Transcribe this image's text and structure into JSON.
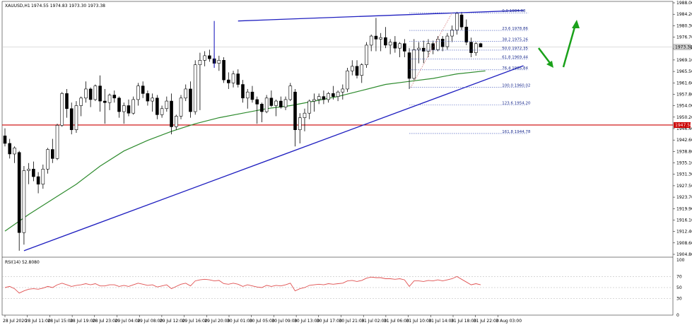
{
  "window": {
    "symbol_title": "XAUUSD,H1",
    "ohlc_text": "1974.55 1974.83 1973.30 1973.38"
  },
  "indicator": {
    "title": "RSI(14) 52.8080",
    "levels": [
      "100",
      "70",
      "50",
      "30",
      "0"
    ]
  },
  "price_tags": {
    "current": "1973.38",
    "horizontal_level": "1947.58"
  },
  "colors": {
    "bull": "#ffffff",
    "bear": "#000000",
    "candle_outline": "#000000",
    "moving_average": "#2e8b2e",
    "trend_line": "#2020c0",
    "horizontal_level": "#cc0000",
    "fib": "#3a4fb8",
    "arrows": "#1aa11a",
    "rsi": "#e05050",
    "current_price_tag": "#d0d0d0"
  },
  "chart_data": {
    "type": "candlestick",
    "title": "",
    "y_range": [
      1904.8,
      1988.0
    ],
    "y_ticks": [
      "1988.00",
      "1984.20",
      "1980.30",
      "1976.70",
      "1973.00",
      "1969.10",
      "1965.50",
      "1961.60",
      "1957.80",
      "1954.00",
      "1950.20",
      "1946.40",
      "1942.60",
      "1938.80",
      "1935.10",
      "1931.30",
      "1927.50",
      "1923.70",
      "1919.90",
      "1916.10",
      "1912.40",
      "1908.60",
      "1904.80"
    ],
    "x_ticks": [
      "28 Jul 2020",
      "28 Jul 11:00",
      "28 Jul 15:00",
      "28 Jul 19:00",
      "28 Jul 23:00",
      "29 Jul 04:00",
      "29 Jul 08:00",
      "29 Jul 12:00",
      "29 Jul 16:00",
      "29 Jul 20:00",
      "30 Jul 01:00",
      "30 Jul 05:00",
      "30 Jul 09:00",
      "30 Jul 13:00",
      "30 Jul 17:00",
      "30 Jul 21:00",
      "31 Jul 02:00",
      "31 Jul 06:00",
      "31 Jul 10:00",
      "31 Jul 14:00",
      "31 Jul 18:00",
      "31 Jul 22:00",
      "3 Aug 03:00"
    ],
    "candles": [
      [
        1944.0,
        1946.5,
        1940.5,
        1941.5
      ],
      [
        1941.5,
        1943.0,
        1936.5,
        1938.0
      ],
      [
        1938.0,
        1940.5,
        1935.0,
        1940.0
      ],
      [
        1938.5,
        1939.0,
        1906.0,
        1912.0
      ],
      [
        1912.0,
        1934.0,
        1908.0,
        1932.5
      ],
      [
        1932.5,
        1935.0,
        1928.0,
        1933.0
      ],
      [
        1933.0,
        1935.5,
        1929.0,
        1930.5
      ],
      [
        1930.5,
        1932.0,
        1925.0,
        1928.0
      ],
      [
        1928.0,
        1934.5,
        1926.5,
        1933.0
      ],
      [
        1933.0,
        1940.0,
        1931.5,
        1939.5
      ],
      [
        1939.5,
        1943.0,
        1935.0,
        1936.5
      ],
      [
        1936.5,
        1948.0,
        1936.0,
        1947.5
      ],
      [
        1947.5,
        1958.5,
        1947.0,
        1958.0
      ],
      [
        1958.0,
        1959.5,
        1950.0,
        1953.0
      ],
      [
        1953.0,
        1955.0,
        1944.5,
        1946.0
      ],
      [
        1946.0,
        1955.5,
        1945.0,
        1954.0
      ],
      [
        1954.0,
        1957.0,
        1950.5,
        1956.5
      ],
      [
        1956.5,
        1962.0,
        1955.0,
        1959.5
      ],
      [
        1959.5,
        1960.0,
        1953.5,
        1956.0
      ],
      [
        1956.0,
        1961.0,
        1955.5,
        1960.5
      ],
      [
        1960.5,
        1964.0,
        1952.0,
        1955.5
      ],
      [
        1955.5,
        1959.5,
        1948.0,
        1955.0
      ],
      [
        1955.0,
        1958.0,
        1952.5,
        1957.5
      ],
      [
        1957.5,
        1959.0,
        1955.0,
        1956.5
      ],
      [
        1956.5,
        1957.0,
        1950.0,
        1952.0
      ],
      [
        1952.0,
        1955.0,
        1948.0,
        1954.0
      ],
      [
        1954.0,
        1956.0,
        1950.5,
        1951.5
      ],
      [
        1951.5,
        1957.0,
        1951.0,
        1956.0
      ],
      [
        1956.0,
        1961.5,
        1954.0,
        1960.5
      ],
      [
        1960.5,
        1962.0,
        1956.5,
        1958.0
      ],
      [
        1958.0,
        1959.0,
        1954.0,
        1955.5
      ],
      [
        1955.5,
        1958.0,
        1952.0,
        1956.5
      ],
      [
        1956.5,
        1957.5,
        1949.5,
        1951.0
      ],
      [
        1951.0,
        1954.0,
        1950.0,
        1953.0
      ],
      [
        1953.0,
        1957.0,
        1952.0,
        1955.5
      ],
      [
        1955.5,
        1958.0,
        1944.5,
        1947.0
      ],
      [
        1947.0,
        1951.0,
        1946.0,
        1950.5
      ],
      [
        1950.5,
        1957.5,
        1949.5,
        1956.5
      ],
      [
        1956.5,
        1961.0,
        1955.5,
        1959.5
      ],
      [
        1959.5,
        1962.0,
        1950.0,
        1952.0
      ],
      [
        1952.0,
        1969.0,
        1951.0,
        1967.5
      ],
      [
        1967.5,
        1971.5,
        1952.5,
        1969.0
      ],
      [
        1969.0,
        1972.0,
        1967.0,
        1970.5
      ],
      [
        1970.5,
        1972.5,
        1968.5,
        1969.5
      ],
      [
        1969.5,
        1971.5,
        1967.0,
        1968.0
      ],
      [
        1968.0,
        1970.5,
        1965.5,
        1969.0
      ],
      [
        1969.0,
        1970.0,
        1961.5,
        1962.5
      ],
      [
        1962.5,
        1965.0,
        1959.5,
        1961.5
      ],
      [
        1961.5,
        1965.5,
        1960.0,
        1964.5
      ],
      [
        1964.5,
        1966.0,
        1960.0,
        1961.0
      ],
      [
        1961.0,
        1962.5,
        1955.0,
        1956.5
      ],
      [
        1956.5,
        1959.5,
        1953.0,
        1958.5
      ],
      [
        1958.5,
        1960.5,
        1955.0,
        1956.0
      ],
      [
        1956.0,
        1957.0,
        1948.0,
        1954.5
      ],
      [
        1954.5,
        1955.0,
        1948.5,
        1952.0
      ],
      [
        1952.0,
        1957.5,
        1951.5,
        1956.5
      ],
      [
        1956.5,
        1959.0,
        1953.5,
        1954.0
      ],
      [
        1954.0,
        1956.0,
        1950.5,
        1955.5
      ],
      [
        1955.5,
        1957.0,
        1953.0,
        1953.5
      ],
      [
        1953.5,
        1957.0,
        1952.5,
        1956.0
      ],
      [
        1956.0,
        1961.5,
        1955.5,
        1960.5
      ],
      [
        1958.5,
        1959.5,
        1940.5,
        1946.0
      ],
      [
        1946.0,
        1951.5,
        1941.5,
        1950.0
      ],
      [
        1950.0,
        1953.0,
        1945.5,
        1951.5
      ],
      [
        1951.5,
        1956.0,
        1949.5,
        1955.5
      ],
      [
        1955.5,
        1958.0,
        1952.0,
        1956.0
      ],
      [
        1956.0,
        1958.0,
        1954.5,
        1957.0
      ],
      [
        1957.0,
        1959.0,
        1954.5,
        1956.0
      ],
      [
        1956.0,
        1958.5,
        1955.0,
        1958.0
      ],
      [
        1958.0,
        1960.5,
        1956.0,
        1957.0
      ],
      [
        1957.0,
        1959.0,
        1955.5,
        1958.5
      ],
      [
        1958.5,
        1961.0,
        1956.0,
        1959.5
      ],
      [
        1959.5,
        1966.5,
        1958.5,
        1965.5
      ],
      [
        1965.5,
        1969.0,
        1964.0,
        1967.0
      ],
      [
        1967.0,
        1969.0,
        1963.0,
        1964.0
      ],
      [
        1964.0,
        1968.0,
        1961.5,
        1967.5
      ],
      [
        1967.5,
        1975.0,
        1966.5,
        1974.0
      ],
      [
        1974.0,
        1977.5,
        1972.0,
        1977.0
      ],
      [
        1977.0,
        1983.0,
        1972.0,
        1976.0
      ],
      [
        1976.0,
        1978.0,
        1972.0,
        1976.5
      ],
      [
        1976.5,
        1980.0,
        1973.0,
        1974.0
      ],
      [
        1974.0,
        1976.0,
        1971.0,
        1975.0
      ],
      [
        1975.0,
        1977.0,
        1971.5,
        1973.0
      ],
      [
        1973.0,
        1975.0,
        1970.0,
        1974.5
      ],
      [
        1974.5,
        1976.0,
        1970.0,
        1972.0
      ],
      [
        1971.5,
        1973.0,
        1959.5,
        1963.0
      ],
      [
        1963.0,
        1976.0,
        1962.5,
        1972.5
      ],
      [
        1972.5,
        1975.0,
        1968.0,
        1973.0
      ],
      [
        1973.0,
        1975.5,
        1968.0,
        1972.0
      ],
      [
        1972.0,
        1976.0,
        1970.0,
        1974.5
      ],
      [
        1974.5,
        1975.5,
        1971.0,
        1972.5
      ],
      [
        1972.5,
        1977.0,
        1972.0,
        1976.0
      ],
      [
        1976.0,
        1977.0,
        1972.0,
        1973.5
      ],
      [
        1973.5,
        1978.0,
        1972.5,
        1977.0
      ],
      [
        1977.0,
        1980.5,
        1975.0,
        1979.0
      ],
      [
        1979.0,
        1985.0,
        1977.5,
        1984.5
      ],
      [
        1984.0,
        1985.0,
        1979.0,
        1980.0
      ],
      [
        1980.0,
        1982.5,
        1974.0,
        1975.0
      ],
      [
        1975.0,
        1976.5,
        1970.0,
        1971.5
      ],
      [
        1971.5,
        1975.0,
        1970.5,
        1974.5
      ],
      [
        1974.5,
        1974.8,
        1973.3,
        1973.4
      ]
    ],
    "moving_average": [
      [
        0,
        1912.5
      ],
      [
        5,
        1918.0
      ],
      [
        10,
        1923.0
      ],
      [
        15,
        1928.0
      ],
      [
        20,
        1934.0
      ],
      [
        25,
        1939.0
      ],
      [
        30,
        1942.5
      ],
      [
        35,
        1945.5
      ],
      [
        40,
        1948.0
      ],
      [
        45,
        1950.0
      ],
      [
        50,
        1951.5
      ],
      [
        55,
        1953.0
      ],
      [
        60,
        1954.0
      ],
      [
        65,
        1955.5
      ],
      [
        70,
        1957.0
      ],
      [
        75,
        1959.0
      ],
      [
        80,
        1961.0
      ],
      [
        85,
        1962.0
      ],
      [
        90,
        1963.0
      ],
      [
        95,
        1964.5
      ],
      [
        101,
        1965.5
      ]
    ],
    "trend_lines": [
      {
        "from": [
          4,
          1906.0
        ],
        "to": [
          109,
          1967.2
        ]
      },
      {
        "from": [
          49,
          1982.0
        ],
        "to": [
          109,
          1985.5
        ]
      }
    ],
    "horizontal_level": 1947.58,
    "current_price": 1973.38,
    "fibonacci": {
      "from_index": 85,
      "to_index": 110,
      "levels": [
        {
          "label": "0.0 1984.68",
          "value": 1984.68
        },
        {
          "label": "23.6 1978.86",
          "value": 1978.86
        },
        {
          "label": "38.2 1975.26",
          "value": 1975.26
        },
        {
          "label": "50.0 1972.35",
          "value": 1972.35
        },
        {
          "label": "61.8 1969.44",
          "value": 1969.44
        },
        {
          "label": "76.4 1965.84",
          "value": 1965.84
        },
        {
          "label": "100.0 1960.02",
          "value": 1960.02
        },
        {
          "label": "123.6 1954.20",
          "value": 1954.2
        },
        {
          "label": "161.8 1944.78",
          "value": 1944.78
        }
      ]
    },
    "rsi": {
      "range": [
        0,
        100
      ],
      "values": [
        50,
        52,
        48,
        40,
        44,
        47,
        48,
        47,
        49,
        52,
        50,
        55,
        58,
        55,
        52,
        54,
        55,
        57,
        55,
        57,
        53,
        53,
        55,
        55,
        52,
        54,
        52,
        55,
        58,
        56,
        54,
        55,
        51,
        53,
        55,
        48,
        52,
        56,
        58,
        53,
        62,
        64,
        65,
        64,
        62,
        63,
        57,
        56,
        58,
        56,
        52,
        55,
        53,
        51,
        50,
        54,
        52,
        54,
        53,
        55,
        58,
        44,
        48,
        50,
        54,
        55,
        56,
        55,
        57,
        56,
        57,
        58,
        62,
        63,
        61,
        63,
        67,
        69,
        68,
        68,
        66,
        66,
        65,
        66,
        64,
        52,
        62,
        62,
        61,
        63,
        62,
        64,
        62,
        64,
        66,
        70,
        65,
        60,
        55,
        57,
        55
      ]
    }
  }
}
